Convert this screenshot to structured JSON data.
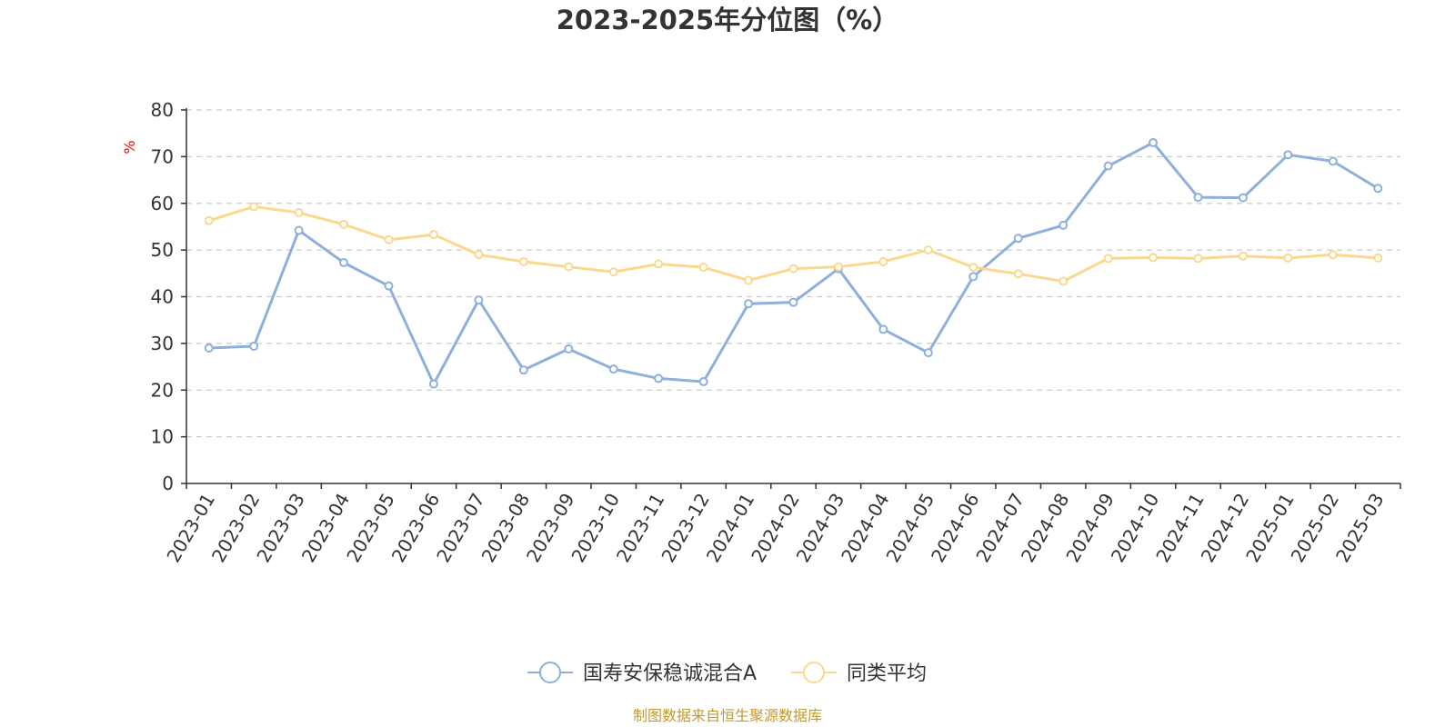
{
  "chart_data": {
    "type": "line",
    "title": "2023-2025年分位图（%）",
    "ylabel": "%",
    "ylim": [
      0,
      80
    ],
    "yticks": [
      0,
      10,
      20,
      30,
      40,
      50,
      60,
      70,
      80
    ],
    "grid": true,
    "legend_position": "bottom",
    "categories": [
      "2023-01",
      "2023-02",
      "2023-03",
      "2023-04",
      "2023-05",
      "2023-06",
      "2023-07",
      "2023-08",
      "2023-09",
      "2023-10",
      "2023-11",
      "2023-12",
      "2024-01",
      "2024-02",
      "2024-03",
      "2024-04",
      "2024-05",
      "2024-06",
      "2024-07",
      "2024-08",
      "2024-09",
      "2024-10",
      "2024-11",
      "2024-12",
      "2025-01",
      "2025-02",
      "2025-03"
    ],
    "series": [
      {
        "name": "国寿安保稳诚混合A",
        "color": "#8eb0da",
        "values": [
          29.0,
          29.4,
          54.2,
          47.3,
          42.3,
          21.3,
          39.3,
          24.3,
          28.8,
          24.5,
          22.5,
          21.8,
          38.5,
          38.8,
          46.0,
          33.0,
          28.0,
          44.3,
          52.5,
          55.3,
          68.0,
          73.0,
          61.3,
          61.2,
          70.4,
          69.0,
          63.2
        ]
      },
      {
        "name": "同类平均",
        "color": "#fbd88e",
        "values": [
          56.3,
          59.3,
          58.0,
          55.5,
          52.2,
          53.3,
          49.0,
          47.5,
          46.4,
          45.3,
          47.0,
          46.3,
          43.5,
          46.0,
          46.4,
          47.5,
          50.0,
          46.3,
          44.9,
          43.3,
          48.2,
          48.4,
          48.2,
          48.7,
          48.3,
          49.0,
          48.3
        ]
      }
    ],
    "source": "制图数据来自恒生聚源数据库"
  }
}
